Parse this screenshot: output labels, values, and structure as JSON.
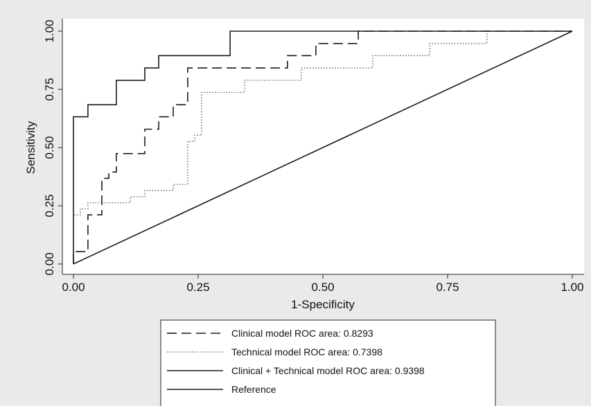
{
  "chart_data": {
    "type": "line",
    "xlabel": "1-Specificity",
    "ylabel": "Sensitivity",
    "xlim": [
      0,
      1
    ],
    "ylim": [
      0,
      1
    ],
    "x_ticks": [
      "0.00",
      "0.25",
      "0.50",
      "0.75",
      "1.00"
    ],
    "y_ticks": [
      "0.00",
      "0.25",
      "0.50",
      "0.75",
      "1.00"
    ],
    "grid": false,
    "legend_position": "bottom",
    "background_color": "#eaeaea",
    "plot_background_color": "#ffffff",
    "series": [
      {
        "name": "Clinical model ROC area: 0.8293",
        "style": "dashed",
        "color": "#1a1a1a",
        "points": [
          [
            0,
            0
          ],
          [
            0,
            0.053
          ],
          [
            0.029,
            0.053
          ],
          [
            0.029,
            0.211
          ],
          [
            0.057,
            0.211
          ],
          [
            0.057,
            0.368
          ],
          [
            0.071,
            0.368
          ],
          [
            0.071,
            0.395
          ],
          [
            0.086,
            0.395
          ],
          [
            0.086,
            0.421
          ],
          [
            0.086,
            0.474
          ],
          [
            0.143,
            0.474
          ],
          [
            0.143,
            0.579
          ],
          [
            0.171,
            0.579
          ],
          [
            0.171,
            0.632
          ],
          [
            0.2,
            0.632
          ],
          [
            0.2,
            0.684
          ],
          [
            0.229,
            0.684
          ],
          [
            0.229,
            0.842
          ],
          [
            0.429,
            0.842
          ],
          [
            0.429,
            0.895
          ],
          [
            0.486,
            0.895
          ],
          [
            0.486,
            0.947
          ],
          [
            0.571,
            0.947
          ],
          [
            0.571,
            1.0
          ],
          [
            1.0,
            1.0
          ]
        ]
      },
      {
        "name": "Technical model ROC area: 0.7398",
        "style": "dotted",
        "color": "#555555",
        "points": [
          [
            0,
            0
          ],
          [
            0,
            0.211
          ],
          [
            0.014,
            0.211
          ],
          [
            0.014,
            0.237
          ],
          [
            0.029,
            0.237
          ],
          [
            0.029,
            0.263
          ],
          [
            0.114,
            0.263
          ],
          [
            0.114,
            0.289
          ],
          [
            0.143,
            0.289
          ],
          [
            0.143,
            0.316
          ],
          [
            0.2,
            0.316
          ],
          [
            0.2,
            0.342
          ],
          [
            0.229,
            0.342
          ],
          [
            0.229,
            0.368
          ],
          [
            0.229,
            0.526
          ],
          [
            0.243,
            0.526
          ],
          [
            0.243,
            0.553
          ],
          [
            0.257,
            0.553
          ],
          [
            0.257,
            0.579
          ],
          [
            0.257,
            0.737
          ],
          [
            0.343,
            0.737
          ],
          [
            0.343,
            0.789
          ],
          [
            0.457,
            0.789
          ],
          [
            0.457,
            0.842
          ],
          [
            0.6,
            0.842
          ],
          [
            0.6,
            0.895
          ],
          [
            0.714,
            0.895
          ],
          [
            0.714,
            0.947
          ],
          [
            0.829,
            0.947
          ],
          [
            0.829,
            1.0
          ],
          [
            1.0,
            1.0
          ]
        ]
      },
      {
        "name": "Clinical + Technical model ROC area: 0.9398",
        "style": "solid",
        "color": "#1a1a1a",
        "points": [
          [
            0,
            0
          ],
          [
            0,
            0.632
          ],
          [
            0.029,
            0.632
          ],
          [
            0.029,
            0.684
          ],
          [
            0.086,
            0.684
          ],
          [
            0.086,
            0.789
          ],
          [
            0.143,
            0.789
          ],
          [
            0.143,
            0.842
          ],
          [
            0.171,
            0.842
          ],
          [
            0.171,
            0.895
          ],
          [
            0.314,
            0.895
          ],
          [
            0.314,
            1.0
          ],
          [
            1.0,
            1.0
          ]
        ]
      },
      {
        "name": "Reference",
        "style": "solid",
        "color": "#1a1a1a",
        "points": [
          [
            0,
            0
          ],
          [
            1,
            1
          ]
        ]
      }
    ]
  }
}
